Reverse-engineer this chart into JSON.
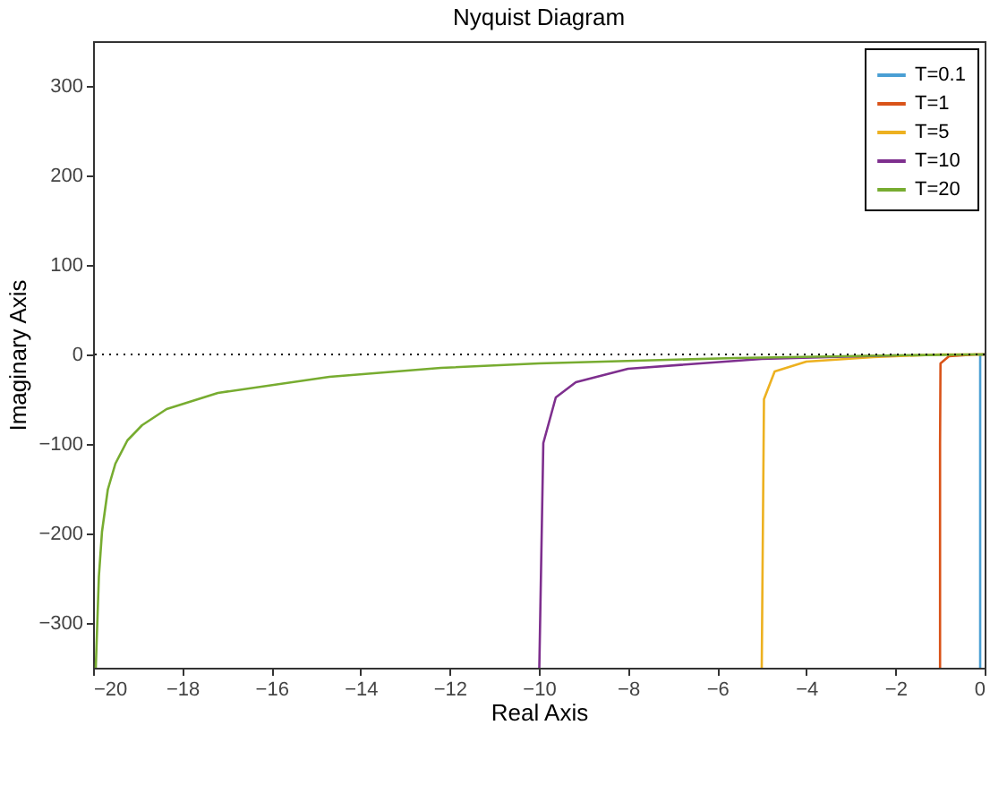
{
  "chart_data": {
    "type": "line",
    "title": "Nyquist Diagram",
    "xlabel": "Real Axis",
    "ylabel": "Imaginary Axis",
    "xlim": [
      -20,
      0
    ],
    "ylim": [
      -350,
      350
    ],
    "xticks": [
      -20,
      -18,
      -16,
      -14,
      -12,
      -10,
      -8,
      -6,
      -4,
      -2,
      0
    ],
    "yticks": [
      -300,
      -200,
      -100,
      0,
      100,
      200,
      300
    ],
    "grid": false,
    "legend": "top right",
    "line_style": "solid",
    "marker": "none",
    "series": [
      {
        "name": "T=0.1",
        "color": "#4a9fd4",
        "x": [
          -0.1,
          -0.1,
          -0.1,
          -0.099,
          -0.05,
          0
        ],
        "values": [
          -350,
          -100,
          -10,
          -1,
          0,
          0
        ]
      },
      {
        "name": "T=1",
        "color": "#d95319",
        "x": [
          -1,
          -1,
          -0.99,
          -0.8,
          -0.5,
          -0.2,
          0
        ],
        "values": [
          -350,
          -100,
          -10,
          -2,
          -1,
          0,
          0
        ]
      },
      {
        "name": "T=5",
        "color": "#edb120",
        "x": [
          -5,
          -4.95,
          -4.71,
          -4,
          -2.5,
          -1,
          0
        ],
        "values": [
          -350,
          -50,
          -19,
          -8,
          -3,
          0,
          0
        ]
      },
      {
        "name": "T=10",
        "color": "#7e2f8e",
        "x": [
          -9.99,
          -9.9,
          -9.62,
          -9.17,
          -8,
          -5,
          -2
        ],
        "values": [
          -350,
          -99,
          -48,
          -31,
          -16,
          -5,
          -1
        ]
      },
      {
        "name": "T=20",
        "color": "#77ac30",
        "x": [
          -19.94,
          -19.87,
          -19.8,
          -19.67,
          -19.5,
          -19.23,
          -18.9,
          -18.35,
          -17.2,
          -14.7,
          -12.2,
          -10,
          -5.6,
          -2,
          -0.2,
          0
        ],
        "values": [
          -350,
          -248,
          -198,
          -151,
          -122,
          -96,
          -79,
          -61,
          -43,
          -25,
          -15,
          -10,
          -4,
          -1,
          0,
          0
        ]
      }
    ],
    "ref_lines": [
      {
        "axis": "y",
        "value": 0,
        "color": "#000000",
        "line_style": "dotted"
      }
    ]
  }
}
